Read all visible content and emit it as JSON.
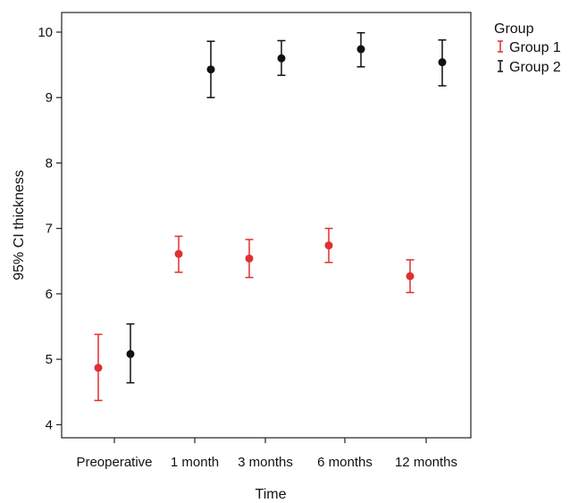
{
  "chart_data": {
    "type": "scatter",
    "xlabel": "Time",
    "ylabel": "95% CI thickness",
    "categories": [
      "Preoperative",
      "1 month",
      "3 months",
      "6 months",
      "12 months"
    ],
    "ylim": [
      3.8,
      10.3
    ],
    "yticks": [
      4,
      5,
      6,
      7,
      8,
      9,
      10
    ],
    "legend_title": "Group",
    "legend_position": "top-right",
    "grid": false,
    "series": [
      {
        "name": "Group 1",
        "color": "#e03030",
        "points": [
          {
            "category": "Preoperative",
            "mean": 4.87,
            "lower": 4.37,
            "upper": 5.38
          },
          {
            "category": "1 month",
            "mean": 6.61,
            "lower": 6.33,
            "upper": 6.88
          },
          {
            "category": "3 months",
            "mean": 6.54,
            "lower": 6.25,
            "upper": 6.83
          },
          {
            "category": "6 months",
            "mean": 6.74,
            "lower": 6.48,
            "upper": 7.0
          },
          {
            "category": "12 months",
            "mean": 6.27,
            "lower": 6.02,
            "upper": 6.52
          }
        ]
      },
      {
        "name": "Group 2",
        "color": "#111111",
        "points": [
          {
            "category": "Preoperative",
            "mean": 5.08,
            "lower": 4.64,
            "upper": 5.54
          },
          {
            "category": "1 month",
            "mean": 9.43,
            "lower": 9.0,
            "upper": 9.86
          },
          {
            "category": "3 months",
            "mean": 9.6,
            "lower": 9.34,
            "upper": 9.87
          },
          {
            "category": "6 months",
            "mean": 9.74,
            "lower": 9.47,
            "upper": 9.99
          },
          {
            "category": "12 months",
            "mean": 9.54,
            "lower": 9.18,
            "upper": 9.88
          }
        ]
      }
    ]
  }
}
